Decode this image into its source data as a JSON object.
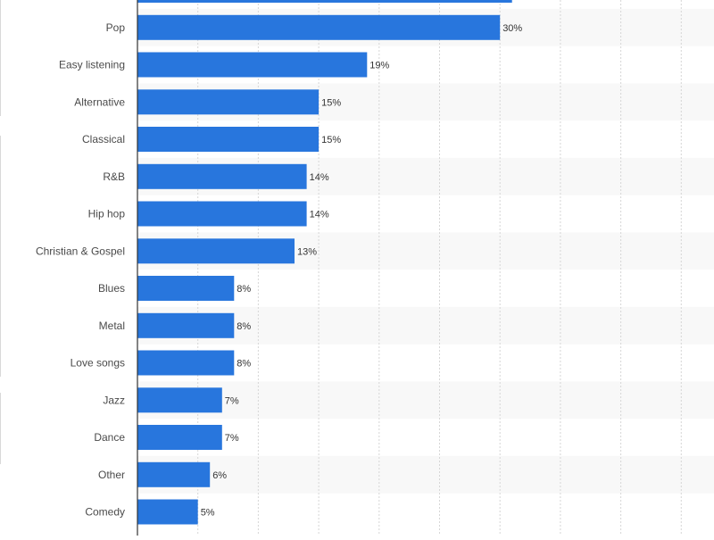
{
  "chart_data": {
    "type": "bar",
    "orientation": "horizontal",
    "categories": [
      "",
      "Pop",
      "Easy listening",
      "Alternative",
      "Classical",
      "R&B",
      "Hip hop",
      "Christian & Gospel",
      "Blues",
      "Metal",
      "Love songs",
      "Jazz",
      "Dance",
      "Other",
      "Comedy"
    ],
    "values": [
      31,
      30,
      19,
      15,
      15,
      14,
      14,
      13,
      8,
      8,
      8,
      7,
      7,
      6,
      5
    ],
    "value_labels": [
      "",
      "30%",
      "19%",
      "15%",
      "15%",
      "14%",
      "14%",
      "13%",
      "8%",
      "8%",
      "8%",
      "7%",
      "7%",
      "6%",
      "5%"
    ],
    "title": "",
    "xlabel": "",
    "ylabel": "",
    "xlim": [
      0,
      45
    ],
    "grid": true,
    "legend": "none",
    "colors": {
      "bar": "#2876dd",
      "grid": "#d6d6d6",
      "band": "#f8f8f8",
      "axis": "#333333"
    }
  }
}
